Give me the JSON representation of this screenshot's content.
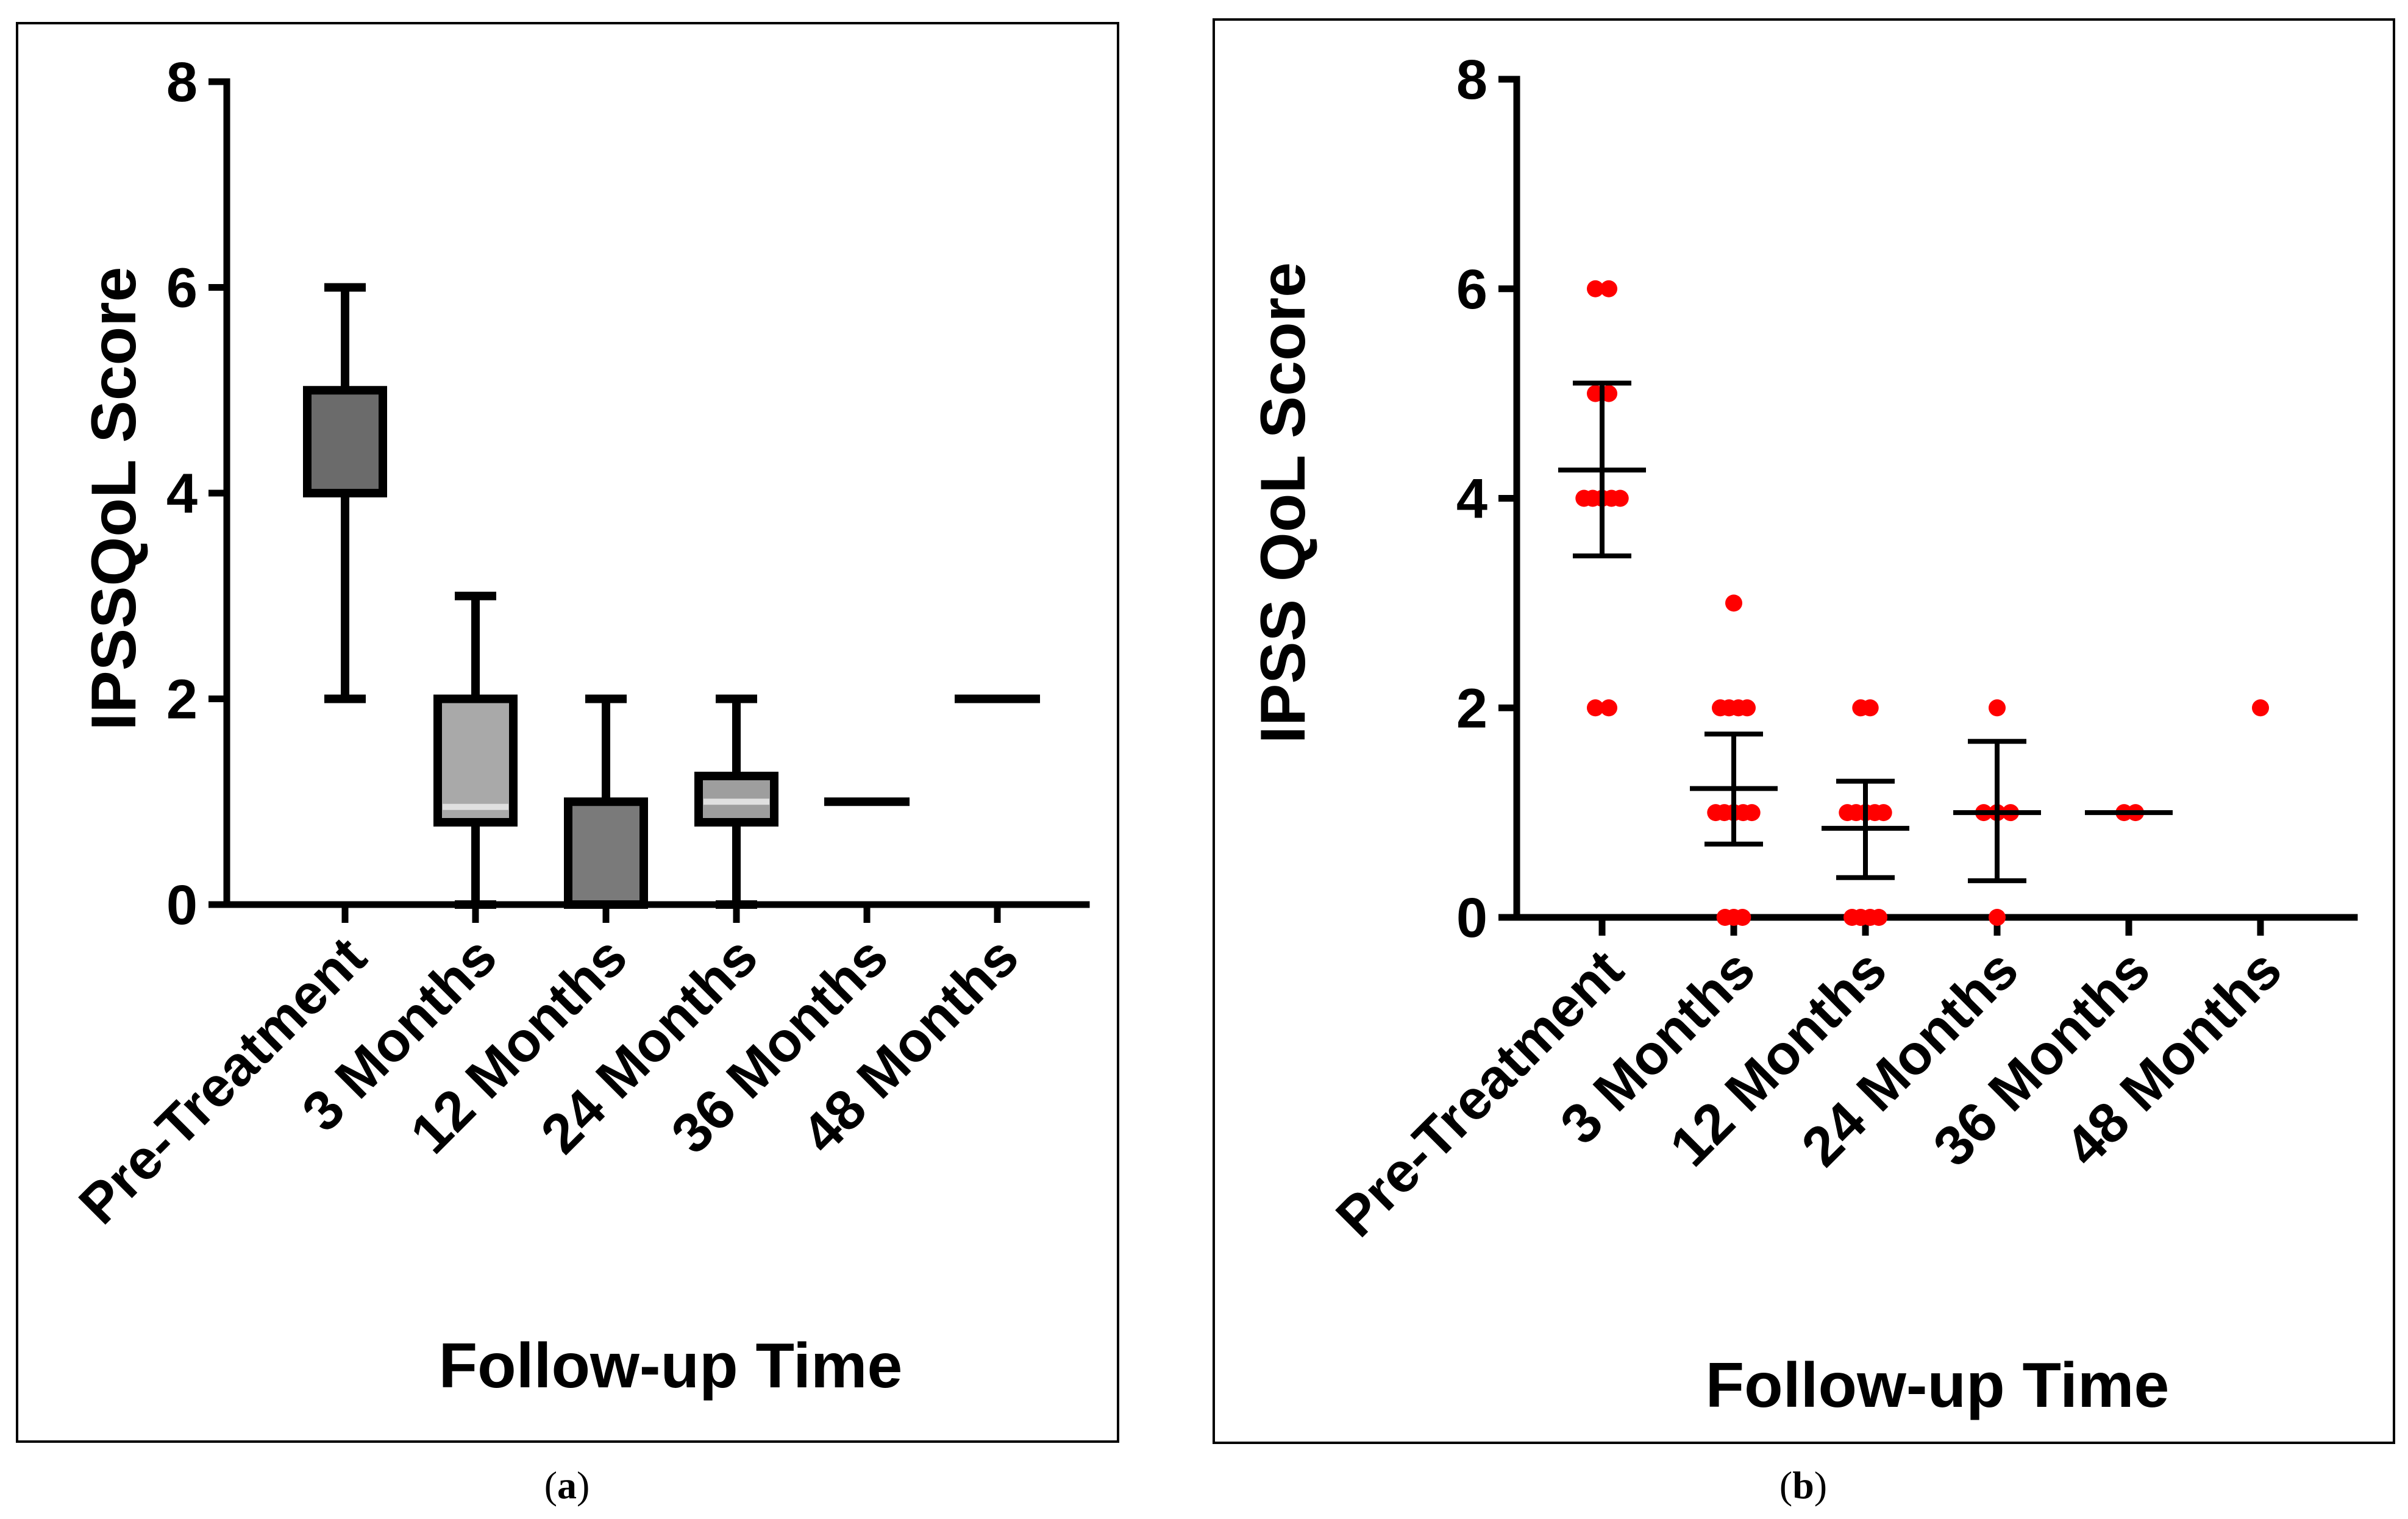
{
  "panels": [
    {
      "id": "a",
      "caption_paren_open": "(",
      "caption_letter": "a",
      "caption_paren_close": ")"
    },
    {
      "id": "b",
      "caption_paren_open": "(",
      "caption_letter": "b",
      "caption_paren_close": ")"
    }
  ],
  "chart_data": [
    {
      "type": "box",
      "panel": "a",
      "ylabel": "IPSSQoL Score",
      "xlabel": "Follow-up Time",
      "ylim": [
        0,
        8
      ],
      "yticks": [
        "0",
        "2",
        "4",
        "6",
        "8"
      ],
      "categories": [
        "Pre-Treatment",
        "3 Months",
        "12 Months",
        "24 Months",
        "36 Months",
        "48 Months"
      ],
      "boxes": [
        {
          "min": 2,
          "q1": 4,
          "median": 4,
          "q3": 5,
          "max": 6,
          "fill": "#6b6b6b"
        },
        {
          "min": 0,
          "q1": 0.8,
          "median": 0.95,
          "q3": 2,
          "max": 3,
          "fill": "#a9a9a9"
        },
        {
          "min": 0,
          "q1": 0,
          "median": 0,
          "q3": 1,
          "max": 2,
          "fill": "#7a7a7a"
        },
        {
          "min": 0,
          "q1": 0.8,
          "median": 1,
          "q3": 1.25,
          "max": 2,
          "fill": "#9e9e9e"
        },
        {
          "min": 1,
          "q1": 1,
          "median": 1,
          "q3": 1,
          "max": 1,
          "fill": "#000000"
        },
        {
          "min": 2,
          "q1": 2,
          "median": 2,
          "q3": 2,
          "max": 2,
          "fill": "#000000"
        }
      ]
    },
    {
      "type": "scatter",
      "panel": "b",
      "ylabel": "IPSS QoL Score",
      "xlabel": "Follow-up Time",
      "ylim": [
        0,
        8
      ],
      "yticks": [
        "0",
        "2",
        "4",
        "6",
        "8"
      ],
      "categories": [
        "Pre-Treatment",
        "3 Months",
        "12 Months",
        "24 Months",
        "36 Months",
        "48 Months"
      ],
      "point_color": "#ff0000",
      "groups": [
        {
          "points": [
            [
              -0.1,
              6
            ],
            [
              0.1,
              6
            ],
            [
              -0.1,
              5
            ],
            [
              0.1,
              5
            ],
            [
              -0.27,
              4
            ],
            [
              -0.14,
              4
            ],
            [
              0,
              4
            ],
            [
              0.14,
              4
            ],
            [
              0.27,
              4
            ],
            [
              -0.1,
              2
            ],
            [
              0.1,
              2
            ]
          ],
          "mean": 4.27,
          "error_low": 3.45,
          "error_high": 5.1
        },
        {
          "points": [
            [
              0,
              3
            ],
            [
              -0.2,
              2
            ],
            [
              -0.07,
              2
            ],
            [
              0.07,
              2
            ],
            [
              0.2,
              2
            ],
            [
              -0.27,
              1
            ],
            [
              -0.14,
              1
            ],
            [
              0,
              1
            ],
            [
              0.14,
              1
            ],
            [
              0.27,
              1
            ],
            [
              -0.13,
              0
            ],
            [
              0,
              0
            ],
            [
              0.13,
              0
            ]
          ],
          "mean": 1.23,
          "error_low": 0.7,
          "error_high": 1.75
        },
        {
          "points": [
            [
              -0.07,
              2
            ],
            [
              0.07,
              2
            ],
            [
              -0.27,
              1
            ],
            [
              -0.14,
              1
            ],
            [
              0,
              1
            ],
            [
              0.14,
              1
            ],
            [
              0.27,
              1
            ],
            [
              -0.2,
              0
            ],
            [
              -0.07,
              0
            ],
            [
              0.07,
              0
            ],
            [
              0.2,
              0
            ]
          ],
          "mean": 0.85,
          "error_low": 0.38,
          "error_high": 1.3
        },
        {
          "points": [
            [
              0,
              2
            ],
            [
              -0.2,
              1
            ],
            [
              0,
              1
            ],
            [
              0.2,
              1
            ],
            [
              0,
              0
            ]
          ],
          "mean": 1.0,
          "error_low": 0.35,
          "error_high": 1.68
        },
        {
          "points": [
            [
              -0.07,
              1
            ],
            [
              0.1,
              1
            ]
          ],
          "mean": 1.0,
          "error_low": 1.0,
          "error_high": 1.0
        },
        {
          "points": [
            [
              0,
              2
            ]
          ],
          "mean": null,
          "error_low": null,
          "error_high": null
        }
      ]
    }
  ]
}
